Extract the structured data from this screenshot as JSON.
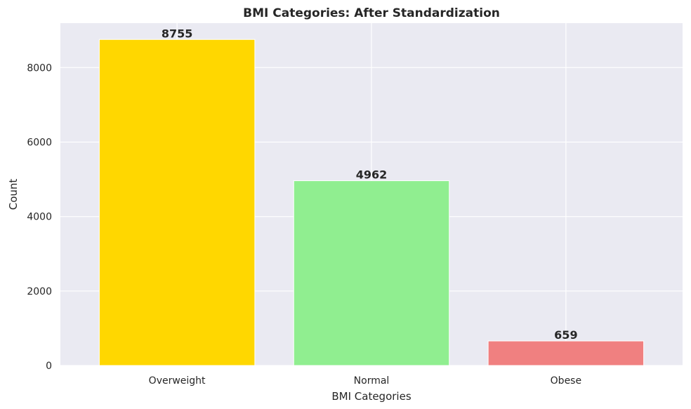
{
  "chart_data": {
    "type": "bar",
    "title": "BMI Categories: After Standardization",
    "xlabel": "BMI Categories",
    "ylabel": "Count",
    "categories": [
      "Overweight",
      "Normal",
      "Obese"
    ],
    "values": [
      8755,
      4962,
      659
    ],
    "data_labels": [
      "8755",
      "4962",
      "659"
    ],
    "colors": [
      "#FFD700",
      "#90EE90",
      "#F08080"
    ],
    "ylim": [
      0,
      9193
    ],
    "yticks": [
      0,
      2000,
      4000,
      6000,
      8000
    ],
    "ytick_labels": [
      "0",
      "2000",
      "4000",
      "6000",
      "8000"
    ],
    "grid": true,
    "background": "#EAEAF2",
    "legend": "none"
  }
}
